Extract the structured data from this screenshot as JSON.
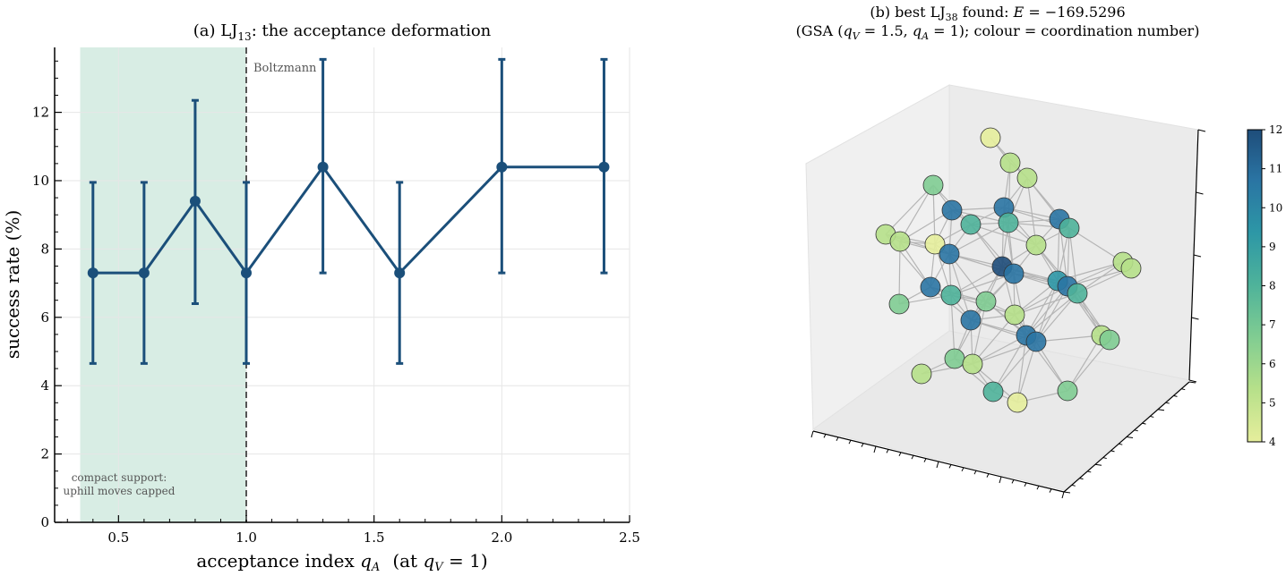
{
  "figure": {
    "left": {
      "title_prefix": "(a) LJ",
      "title_sub": "13",
      "title_suffix": ": the acceptance deformation",
      "xlabel_text": "acceptance index ",
      "xlabel_sym": "q",
      "xlabel_sym_sub": "A",
      "xlabel_paren_open": "(at ",
      "xlabel_paren_sym": "q",
      "xlabel_paren_sub": "V",
      "xlabel_paren_close": " = 1)",
      "ylabel": "success rate (%)",
      "boltzmann_label": "Boltzmann",
      "shade_note_line1": "compact support:",
      "shade_note_line2": "uphill moves capped"
    },
    "right": {
      "title_line1_prefix": "(b) best LJ",
      "title_line1_sub": "38",
      "title_line1_mid": " found: ",
      "title_line1_sym": "E",
      "title_line1_value": " = −169.5296",
      "title_line2": "(GSA (qV = 1.5, qA = 1); colour = coordination number)",
      "title_line2_a": "(GSA (",
      "title_line2_q1": "q",
      "title_line2_q1sub": "V",
      "title_line2_b": " = 1.5, ",
      "title_line2_q2": "q",
      "title_line2_q2sub": "A",
      "title_line2_c": " = 1); colour = coordination number)"
    }
  },
  "colors": {
    "series": "#1b4f7a",
    "shade": "#d8ede4",
    "boltzmann_line": "#555555",
    "grid": "#e6e6e6",
    "colormap": [
      "#e6ee9c",
      "#b6e08a",
      "#7fcc92",
      "#4fb39a",
      "#2d97a6",
      "#2a74a3",
      "#1e4d7a"
    ]
  },
  "chart_data": [
    {
      "type": "line",
      "title": "(a) LJ13: the acceptance deformation",
      "xlabel": "acceptance index qA   (at qV = 1)",
      "ylabel": "success rate (%)",
      "xlim": [
        0.25,
        2.5
      ],
      "ylim": [
        0,
        13.9
      ],
      "xticks": [
        0.5,
        1.0,
        1.5,
        2.0,
        2.5
      ],
      "xtick_labels": [
        "0.5",
        "1.0",
        "1.5",
        "2.0",
        "2.5"
      ],
      "yticks": [
        0,
        2,
        4,
        6,
        8,
        10,
        12
      ],
      "ytick_labels": [
        "0",
        "2",
        "4",
        "6",
        "8",
        "10",
        "12"
      ],
      "grid": true,
      "shaded_region": {
        "x0": 0.35,
        "x1": 1.0,
        "label": "compact support: uphill moves capped"
      },
      "vline": {
        "x": 1.0,
        "label": "Boltzmann"
      },
      "series": [
        {
          "x": [
            0.4,
            0.6,
            0.8,
            1.0,
            1.3,
            1.6,
            2.0,
            2.4
          ],
          "y": [
            7.3,
            7.3,
            9.4,
            7.3,
            10.4,
            7.3,
            10.4,
            10.4
          ],
          "err_low": [
            4.65,
            4.65,
            6.4,
            4.65,
            7.3,
            4.65,
            7.3,
            7.3
          ],
          "err_high": [
            9.95,
            9.95,
            12.35,
            9.95,
            13.55,
            9.95,
            13.55,
            13.55
          ]
        }
      ]
    },
    {
      "type": "scatter",
      "title": "(b) best LJ38 found: E = −169.5296 (GSA (qV = 1.5, qA = 1); colour = coordination number)",
      "colorbar": {
        "min": 4,
        "max": 12,
        "ticks": [
          4,
          5,
          6,
          7,
          8,
          9,
          10,
          11,
          12
        ],
        "label": ""
      },
      "note": "3D scatter of 38 atoms with bond lines; colour encodes coordination number (4 to 12)"
    }
  ]
}
